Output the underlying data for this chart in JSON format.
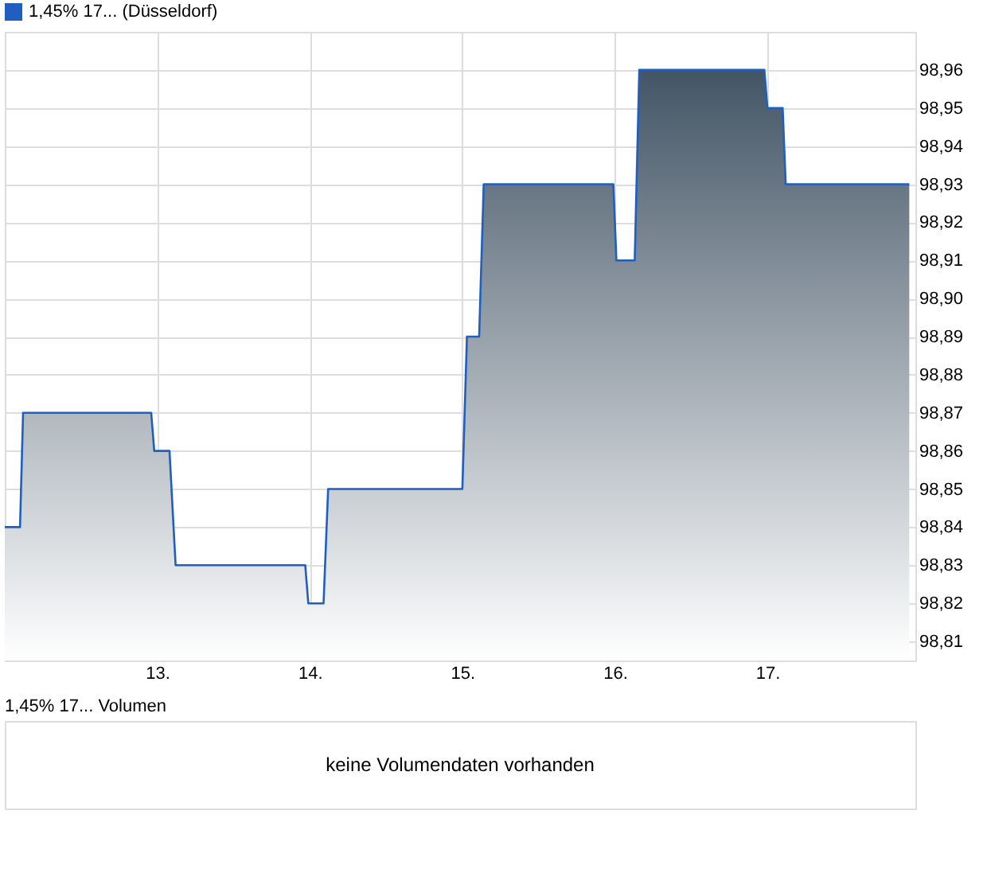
{
  "chart_data": [
    {
      "type": "area",
      "x": [
        12.0,
        12.1,
        12.12,
        12.96,
        12.98,
        13.08,
        13.12,
        13.97,
        13.99,
        14.09,
        14.12,
        15.0,
        15.03,
        15.11,
        15.14,
        15.99,
        16.01,
        16.13,
        16.16,
        16.98,
        17.0,
        17.1,
        17.12,
        17.93
      ],
      "series": [
        {
          "name": "1,45% 17... (Düsseldorf)",
          "color": "#1f5fbf",
          "values": [
            98.84,
            98.84,
            98.87,
            98.87,
            98.86,
            98.86,
            98.83,
            98.83,
            98.82,
            98.82,
            98.85,
            98.85,
            98.89,
            98.89,
            98.93,
            98.93,
            98.91,
            98.91,
            98.96,
            98.96,
            98.95,
            98.95,
            98.93,
            98.93
          ]
        }
      ],
      "line_style": "solid",
      "grid": true,
      "legend": "top left",
      "xlim": [
        12.0,
        17.97
      ],
      "xticks": [
        {
          "value": 13,
          "label": "13."
        },
        {
          "value": 14,
          "label": "14."
        },
        {
          "value": 15,
          "label": "15."
        },
        {
          "value": 16,
          "label": "16."
        },
        {
          "value": 17,
          "label": "17."
        }
      ],
      "ylim": [
        98.805,
        98.97
      ],
      "yticks": [
        {
          "value": 98.81,
          "label": "98,81"
        },
        {
          "value": 98.82,
          "label": "98,82"
        },
        {
          "value": 98.83,
          "label": "98,83"
        },
        {
          "value": 98.84,
          "label": "98,84"
        },
        {
          "value": 98.85,
          "label": "98,85"
        },
        {
          "value": 98.86,
          "label": "98,86"
        },
        {
          "value": 98.87,
          "label": "98,87"
        },
        {
          "value": 98.88,
          "label": "98,88"
        },
        {
          "value": 98.89,
          "label": "98,89"
        },
        {
          "value": 98.9,
          "label": "98,90"
        },
        {
          "value": 98.91,
          "label": "98,91"
        },
        {
          "value": 98.92,
          "label": "98,92"
        },
        {
          "value": 98.93,
          "label": "98,93"
        },
        {
          "value": 98.94,
          "label": "98,94"
        },
        {
          "value": 98.95,
          "label": "98,95"
        },
        {
          "value": 98.96,
          "label": "98,96"
        }
      ]
    },
    {
      "type": "other",
      "title": "1,45% 17... Volumen",
      "annotations": [
        "keine Volumendaten vorhanden"
      ]
    }
  ]
}
